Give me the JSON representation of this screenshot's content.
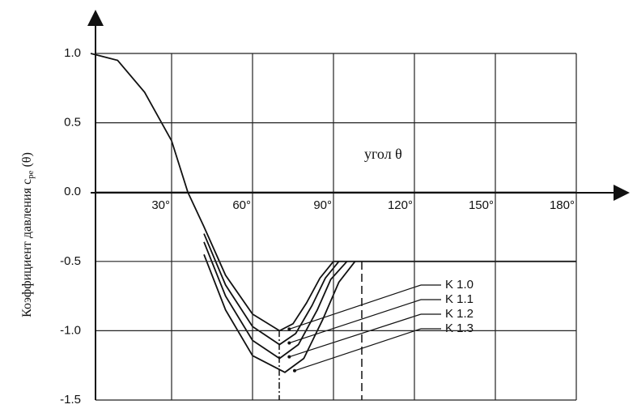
{
  "chart_data": {
    "type": "line",
    "x_label": "угол θ",
    "y_label": {
      "main": "Коэффициент давления c",
      "sub": "pe",
      "tail": " (θ)"
    },
    "xlim": [
      0,
      180
    ],
    "ylim": [
      -1.5,
      1.0
    ],
    "xticks": [
      {
        "value": 30,
        "label": "30°"
      },
      {
        "value": 60,
        "label": "60°"
      },
      {
        "value": 90,
        "label": "90°"
      },
      {
        "value": 120,
        "label": "120°"
      },
      {
        "value": 150,
        "label": "150°"
      },
      {
        "value": 180,
        "label": "180°"
      }
    ],
    "yticks": [
      {
        "value": 1.0,
        "label": "1.0"
      },
      {
        "value": 0.5,
        "label": "0.5"
      },
      {
        "value": 0.0,
        "label": "0.0"
      },
      {
        "value": -0.5,
        "label": "-0.5"
      },
      {
        "value": -1.0,
        "label": "-1.0"
      },
      {
        "value": -1.5,
        "label": "-1.5"
      }
    ],
    "grid": true,
    "series": [
      {
        "name": "K 1.0",
        "color": "#111111",
        "x": [
          0,
          10,
          20,
          30,
          36,
          42,
          50,
          60,
          70,
          75,
          80,
          85,
          90,
          180
        ],
        "values": [
          1.0,
          0.95,
          0.72,
          0.37,
          0.0,
          -0.25,
          -0.6,
          -0.88,
          -1.0,
          -0.95,
          -0.8,
          -0.62,
          -0.5,
          -0.5
        ]
      },
      {
        "name": "K 1.1",
        "color": "#111111",
        "x": [
          42,
          50,
          60,
          70,
          76,
          82,
          87,
          92
        ],
        "values": [
          -0.3,
          -0.67,
          -0.97,
          -1.1,
          -1.02,
          -0.82,
          -0.62,
          -0.5
        ]
      },
      {
        "name": "K 1.2",
        "color": "#111111",
        "x": [
          42,
          50,
          60,
          70,
          77,
          84,
          89,
          95
        ],
        "values": [
          -0.36,
          -0.75,
          -1.07,
          -1.2,
          -1.1,
          -0.85,
          -0.63,
          -0.5
        ]
      },
      {
        "name": "K 1.3",
        "color": "#111111",
        "x": [
          42,
          50,
          60,
          72,
          79,
          86,
          92,
          98
        ],
        "values": [
          -0.45,
          -0.85,
          -1.18,
          -1.3,
          -1.2,
          -0.92,
          -0.65,
          -0.5
        ]
      }
    ]
  }
}
